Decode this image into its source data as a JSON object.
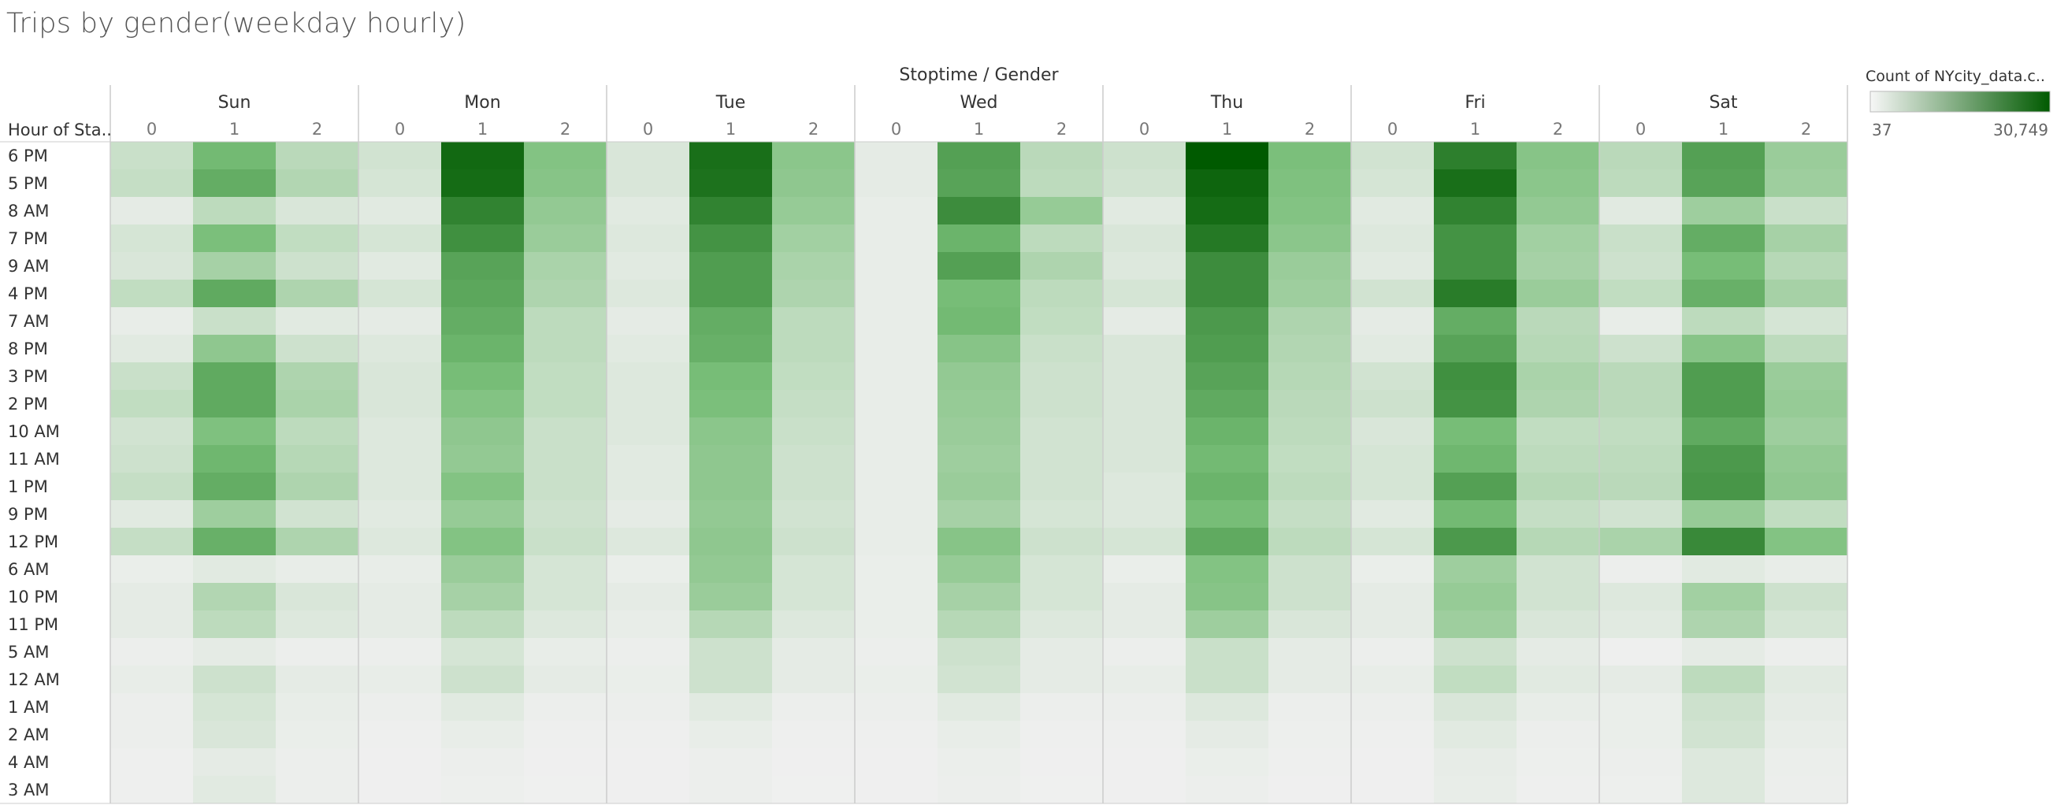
{
  "title": "Trips by gender(weekday hourly)",
  "legend": {
    "title": "Count of NYcity_data.c..",
    "min_label": "37",
    "max_label": "30,749",
    "min": 37,
    "max": 30749,
    "color_low": "#f0f0f0",
    "color_high": "#005a00"
  },
  "chart_data": {
    "type": "heatmap",
    "column_header": "Stoptime / Gender",
    "row_header": "Hour of Sta..",
    "days": [
      "Sun",
      "Mon",
      "Tue",
      "Wed",
      "Thu",
      "Fri",
      "Sat"
    ],
    "genders": [
      "0",
      "1",
      "2"
    ],
    "rows": [
      "6 PM",
      "5 PM",
      "8 AM",
      "7 PM",
      "9 AM",
      "4 PM",
      "7 AM",
      "8 PM",
      "3 PM",
      "2 PM",
      "10 AM",
      "11 AM",
      "1 PM",
      "9 PM",
      "12 PM",
      "6 AM",
      "10 PM",
      "11 PM",
      "5 AM",
      "12 AM",
      "1 AM",
      "2 AM",
      "4 AM",
      "3 AM"
    ],
    "values": [
      [
        5000,
        16000,
        7000,
        4000,
        28500,
        14000,
        3000,
        27500,
        13000,
        1500,
        20000,
        7000,
        4500,
        30749,
        15000,
        4000,
        25000,
        13500,
        7000,
        20000,
        11000
      ],
      [
        5500,
        18000,
        8000,
        3500,
        28000,
        13500,
        3000,
        27000,
        12500,
        1500,
        19500,
        6500,
        4000,
        29000,
        14500,
        3500,
        27500,
        13000,
        6500,
        19500,
        10500
      ],
      [
        1500,
        6500,
        3000,
        2000,
        24500,
        12000,
        2000,
        24500,
        11500,
        1000,
        23000,
        11500,
        2000,
        28000,
        14000,
        2000,
        24500,
        12000,
        2000,
        10500,
        5000
      ],
      [
        3500,
        15000,
        6000,
        3500,
        22500,
        11000,
        2500,
        22000,
        10000,
        1000,
        17000,
        6500,
        3000,
        26000,
        13000,
        2500,
        22000,
        10000,
        5000,
        18000,
        9500
      ],
      [
        3000,
        9500,
        4500,
        2000,
        19500,
        9000,
        2000,
        20500,
        9000,
        1000,
        20000,
        8500,
        2500,
        23000,
        11000,
        2000,
        22000,
        9500,
        4500,
        15500,
        7500
      ],
      [
        6000,
        18500,
        8500,
        3500,
        19000,
        8500,
        2500,
        20500,
        8500,
        1000,
        15500,
        6500,
        3500,
        23000,
        10500,
        4000,
        25500,
        11000,
        6000,
        17500,
        9500
      ],
      [
        1000,
        5000,
        2000,
        1500,
        18000,
        6500,
        1500,
        18000,
        6500,
        1000,
        16000,
        6000,
        1500,
        21000,
        8500,
        1500,
        18000,
        7000,
        1000,
        6500,
        3500
      ],
      [
        2000,
        12500,
        4500,
        2500,
        17000,
        6500,
        2000,
        17500,
        6500,
        1000,
        13500,
        5000,
        3000,
        20500,
        8000,
        2000,
        19500,
        7500,
        4500,
        13500,
        6500
      ],
      [
        5000,
        18500,
        8500,
        3000,
        15500,
        6000,
        2500,
        15500,
        6000,
        1000,
        12000,
        4500,
        3000,
        19500,
        7500,
        4000,
        22500,
        9000,
        7000,
        20500,
        11000
      ],
      [
        6000,
        18500,
        9000,
        3000,
        14000,
        6000,
        2500,
        15000,
        5500,
        1000,
        11500,
        4500,
        3000,
        18500,
        7000,
        4500,
        22000,
        8500,
        7000,
        20500,
        11500
      ],
      [
        4000,
        14500,
        6500,
        2500,
        12500,
        5000,
        2500,
        13000,
        5000,
        1000,
        11000,
        4000,
        3000,
        17000,
        6500,
        3000,
        15500,
        6000,
        6000,
        18500,
        10500
      ],
      [
        4500,
        16500,
        7500,
        2500,
        12000,
        5000,
        2000,
        12500,
        4500,
        1000,
        10500,
        4000,
        3000,
        16000,
        6000,
        3500,
        16500,
        6500,
        6500,
        21000,
        12000
      ],
      [
        5500,
        18000,
        8500,
        2500,
        14000,
        5000,
        2000,
        12500,
        4500,
        1000,
        11000,
        4000,
        2500,
        17000,
        6500,
        3500,
        20000,
        7500,
        7000,
        21500,
        12500
      ],
      [
        2000,
        10500,
        4000,
        2000,
        11500,
        4500,
        1500,
        12000,
        4000,
        1000,
        9500,
        3500,
        2500,
        15500,
        5500,
        2000,
        16000,
        5500,
        4000,
        11500,
        6000
      ],
      [
        5500,
        17500,
        8500,
        2500,
        14000,
        5000,
        2500,
        12500,
        4500,
        1000,
        13500,
        4500,
        3500,
        18500,
        6500,
        3500,
        21000,
        7500,
        9000,
        23500,
        14000
      ],
      [
        800,
        2000,
        1000,
        1000,
        11000,
        3500,
        800,
        12000,
        3500,
        800,
        11500,
        3500,
        800,
        14000,
        4500,
        800,
        10500,
        4000,
        500,
        2000,
        1000
      ],
      [
        1500,
        8000,
        3000,
        1500,
        9500,
        3500,
        1500,
        11000,
        3500,
        800,
        9500,
        3500,
        1500,
        13500,
        4500,
        1500,
        11500,
        4000,
        2500,
        10000,
        4500
      ],
      [
        1500,
        6500,
        2500,
        1500,
        6500,
        2500,
        1000,
        7500,
        2500,
        800,
        7500,
        2500,
        1500,
        10500,
        3000,
        1500,
        10500,
        3000,
        2000,
        8500,
        3500
      ],
      [
        500,
        1500,
        500,
        500,
        3500,
        1000,
        500,
        4500,
        1500,
        500,
        4500,
        1500,
        500,
        5000,
        1500,
        500,
        4500,
        1500,
        300,
        1500,
        500
      ],
      [
        1000,
        4500,
        1500,
        1000,
        4500,
        1500,
        800,
        4500,
        1500,
        800,
        4000,
        1500,
        1000,
        5000,
        1500,
        1000,
        6000,
        2000,
        1500,
        6500,
        2000
      ],
      [
        500,
        3500,
        1000,
        500,
        2000,
        500,
        500,
        2000,
        500,
        500,
        2000,
        500,
        500,
        2500,
        500,
        500,
        3000,
        1000,
        800,
        4500,
        1500
      ],
      [
        500,
        3000,
        800,
        300,
        1000,
        300,
        300,
        1000,
        300,
        300,
        1000,
        300,
        300,
        1500,
        400,
        300,
        2000,
        500,
        800,
        4000,
        1000
      ],
      [
        300,
        1500,
        500,
        200,
        500,
        200,
        200,
        600,
        200,
        200,
        700,
        200,
        200,
        800,
        300,
        200,
        1200,
        400,
        500,
        2500,
        700
      ],
      [
        300,
        2000,
        500,
        200,
        400,
        150,
        200,
        500,
        150,
        200,
        500,
        150,
        200,
        600,
        200,
        200,
        1000,
        300,
        400,
        2500,
        600
      ]
    ]
  }
}
